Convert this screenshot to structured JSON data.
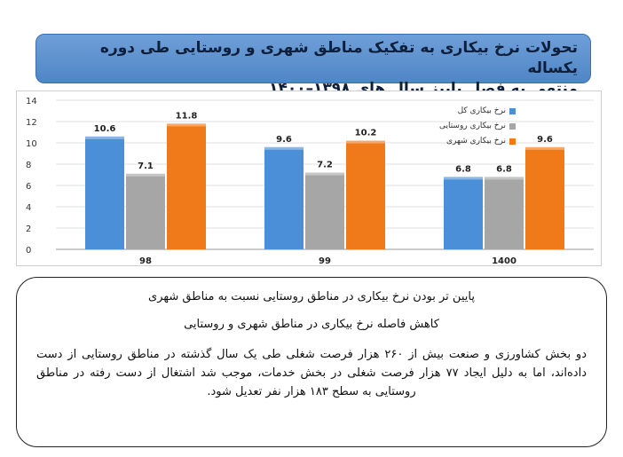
{
  "header": {
    "title_line1": "تحولات نرخ بیکاری  به تفکیک مناطق شهری و روستایی طی دوره یکساله",
    "title_line2": "منتهی به فصل پاییز سال های ۱۳۹۸–۱۴۰۰"
  },
  "chart_data": {
    "type": "bar",
    "categories": [
      "98",
      "99",
      "1400"
    ],
    "series": [
      {
        "name": "نرخ بیکاری کل",
        "values": [
          10.6,
          9.6,
          6.8
        ],
        "color": "#4a8fd8"
      },
      {
        "name": "نرخ بیکاری روستایی",
        "values": [
          7.1,
          7.2,
          6.8
        ],
        "color": "#a6a6a6"
      },
      {
        "name": "نرخ بیکاری شهری",
        "values": [
          11.8,
          10.2,
          9.6
        ],
        "color": "#f07a1a"
      }
    ],
    "ylim": [
      0,
      14
    ],
    "yticks": [
      0,
      2,
      4,
      6,
      8,
      10,
      12,
      14
    ],
    "grid": true,
    "legend_position": "top-right"
  },
  "notes": {
    "line1": "پایین تر بودن نرخ بیکاری در مناطق روستایی نسبت به مناطق شهری",
    "line2": "کاهش فاصله نرخ بیکاری در مناطق شهری و روستایی",
    "paragraph": "دو بخش کشاورزی و صنعت بیش از ۲۶۰ هزار فرصت شغلی طی یک سال گذشته در مناطق روستایی از دست داده‌اند، اما به دلیل ایجاد ۷۷ هزار فرصت شغلی در بخش خدمات، موجب شد اشتغال از دست رفته در مناطق روستایی به سطح ۱۸۳ هزار نفر تعدیل شود."
  }
}
